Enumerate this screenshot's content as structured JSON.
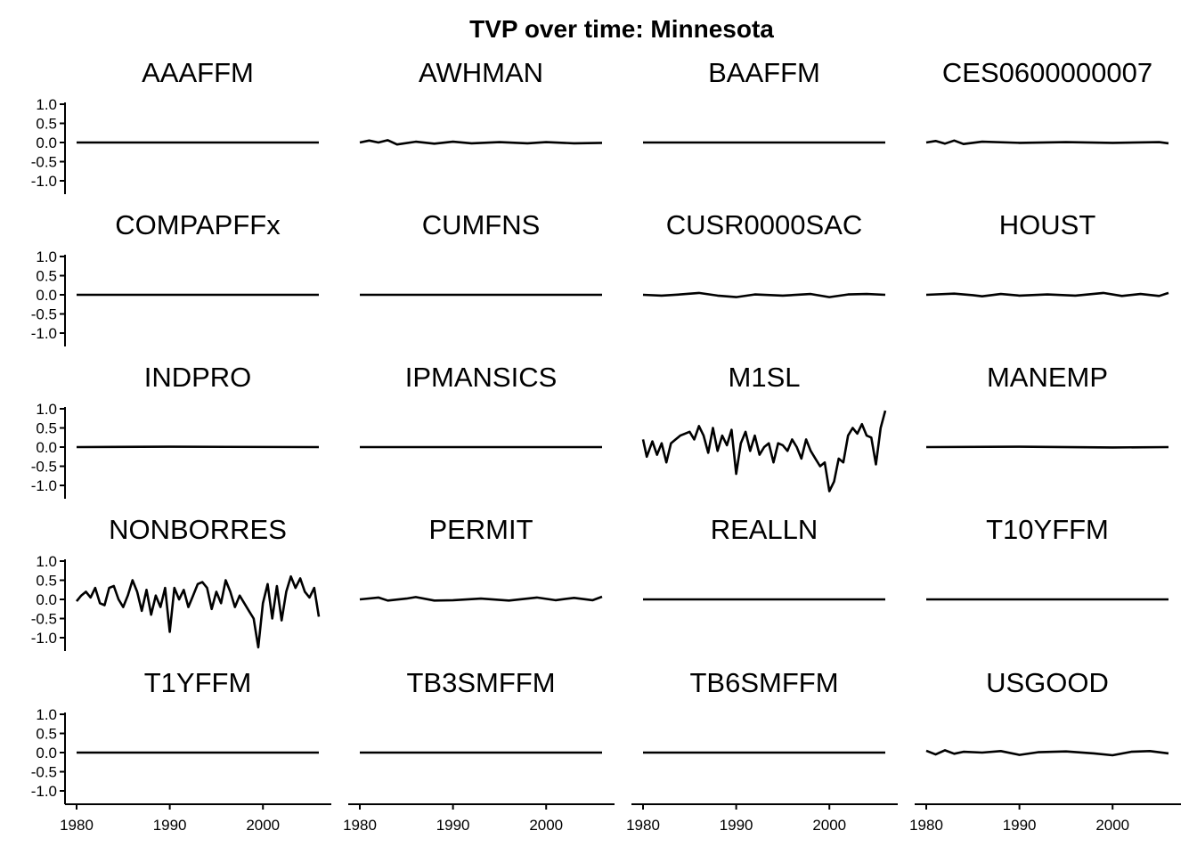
{
  "chart_data": {
    "type": "line",
    "title": "TVP over time: Minnesota",
    "xlabel": "",
    "ylabel": "",
    "xlim": [
      1980,
      2006
    ],
    "ylim": [
      -1.35,
      1.05
    ],
    "y_ticks": [
      "1.0",
      "0.5",
      "0.0",
      "-0.5",
      "-1.0"
    ],
    "y_tick_values": [
      1.0,
      0.5,
      0.0,
      -0.5,
      -1.0
    ],
    "x_ticks": [
      "1980",
      "1990",
      "2000"
    ],
    "x_tick_values": [
      1980,
      1990,
      2000
    ],
    "grid": false,
    "layout": "facet-grid 5 rows x 4 columns",
    "panels": [
      {
        "name": "AAAFFM",
        "x": [
          1980,
          2006
        ],
        "values": [
          0,
          0
        ]
      },
      {
        "name": "AWHMAN",
        "x": [
          1980,
          1981,
          1982,
          1983,
          1984,
          1986,
          1988,
          1990,
          1992,
          1995,
          1998,
          2000,
          2003,
          2006
        ],
        "values": [
          0.0,
          0.05,
          0.0,
          0.06,
          -0.05,
          0.02,
          -0.03,
          0.02,
          -0.02,
          0.01,
          -0.02,
          0.01,
          -0.02,
          -0.01
        ]
      },
      {
        "name": "BAAFFM",
        "x": [
          1980,
          2006
        ],
        "values": [
          0,
          0
        ]
      },
      {
        "name": "CES0600000007",
        "x": [
          1980,
          1981,
          1982,
          1983,
          1984,
          1986,
          1990,
          1995,
          2000,
          2005,
          2006
        ],
        "values": [
          0.0,
          0.04,
          -0.03,
          0.05,
          -0.04,
          0.02,
          -0.01,
          0.01,
          -0.01,
          0.01,
          -0.02
        ]
      },
      {
        "name": "COMPAPFFx",
        "x": [
          1980,
          2006
        ],
        "values": [
          0,
          0
        ]
      },
      {
        "name": "CUMFNS",
        "x": [
          1980,
          2006
        ],
        "values": [
          0,
          0
        ]
      },
      {
        "name": "CUSR0000SAC",
        "x": [
          1980,
          1982,
          1984,
          1986,
          1988,
          1990,
          1992,
          1995,
          1998,
          2000,
          2002,
          2004,
          2006
        ],
        "values": [
          0.0,
          -0.02,
          0.01,
          0.05,
          -0.02,
          -0.06,
          0.01,
          -0.02,
          0.02,
          -0.06,
          0.01,
          0.02,
          0.0
        ]
      },
      {
        "name": "HOUST",
        "x": [
          1980,
          1983,
          1985,
          1986,
          1988,
          1990,
          1993,
          1996,
          1999,
          2001,
          2003,
          2005,
          2006
        ],
        "values": [
          0.0,
          0.03,
          -0.01,
          -0.04,
          0.02,
          -0.02,
          0.01,
          -0.02,
          0.05,
          -0.03,
          0.02,
          -0.03,
          0.05
        ]
      },
      {
        "name": "INDPRO",
        "x": [
          1980,
          1990,
          2006
        ],
        "values": [
          0.0,
          0.01,
          0.0
        ]
      },
      {
        "name": "IPMANSICS",
        "x": [
          1980,
          2006
        ],
        "values": [
          0,
          0
        ]
      },
      {
        "name": "M1SL",
        "x": [
          1980,
          1980.4,
          1981,
          1981.5,
          1982,
          1982.5,
          1983,
          1983.5,
          1984,
          1984.5,
          1985,
          1985.5,
          1986,
          1986.5,
          1987,
          1987.5,
          1988,
          1988.5,
          1989,
          1989.5,
          1990,
          1990.5,
          1991,
          1991.5,
          1992,
          1992.5,
          1993,
          1993.5,
          1994,
          1994.5,
          1995,
          1995.5,
          1996,
          1996.5,
          1997,
          1997.5,
          1998,
          1998.5,
          1999,
          1999.5,
          2000,
          2000.5,
          2001,
          2001.5,
          2002,
          2002.5,
          2003,
          2003.5,
          2004,
          2004.5,
          2005,
          2005.5,
          2006
        ],
        "values": [
          0.2,
          -0.25,
          0.15,
          -0.2,
          0.1,
          -0.4,
          0.1,
          0.2,
          0.3,
          0.35,
          0.4,
          0.2,
          0.55,
          0.3,
          -0.15,
          0.5,
          -0.1,
          0.3,
          0.05,
          0.45,
          -0.7,
          0.1,
          0.4,
          -0.1,
          0.3,
          -0.2,
          0.0,
          0.1,
          -0.4,
          0.1,
          0.05,
          -0.1,
          0.2,
          0.0,
          -0.3,
          0.2,
          -0.1,
          -0.3,
          -0.5,
          -0.4,
          -1.15,
          -0.9,
          -0.3,
          -0.4,
          0.3,
          0.5,
          0.35,
          0.6,
          0.3,
          0.25,
          -0.45,
          0.5,
          0.95
        ]
      },
      {
        "name": "MANEMP",
        "x": [
          1980,
          1990,
          2000,
          2006
        ],
        "values": [
          0.0,
          0.01,
          -0.01,
          0.0
        ]
      },
      {
        "name": "NONBORRES",
        "x": [
          1980,
          1980.5,
          1981,
          1981.5,
          1982,
          1982.5,
          1983,
          1983.5,
          1984,
          1984.5,
          1985,
          1985.5,
          1986,
          1986.5,
          1987,
          1987.5,
          1988,
          1988.5,
          1989,
          1989.5,
          1990,
          1990.5,
          1991,
          1991.5,
          1992,
          1992.5,
          1993,
          1993.5,
          1994,
          1994.5,
          1995,
          1995.5,
          1996,
          1996.5,
          1997,
          1997.5,
          1998,
          1998.5,
          1999,
          1999.5,
          2000,
          2000.5,
          2001,
          2001.5,
          2002,
          2002.5,
          2003,
          2003.5,
          2004,
          2004.5,
          2005,
          2005.5,
          2006
        ],
        "values": [
          -0.05,
          0.1,
          0.2,
          0.05,
          0.3,
          -0.1,
          -0.15,
          0.3,
          0.35,
          0.0,
          -0.2,
          0.1,
          0.5,
          0.2,
          -0.3,
          0.25,
          -0.4,
          0.1,
          -0.2,
          0.3,
          -0.85,
          0.3,
          0.0,
          0.25,
          -0.2,
          0.1,
          0.4,
          0.45,
          0.3,
          -0.25,
          0.2,
          -0.1,
          0.5,
          0.2,
          -0.2,
          0.1,
          -0.1,
          -0.3,
          -0.5,
          -1.25,
          -0.1,
          0.4,
          -0.5,
          0.35,
          -0.55,
          0.2,
          0.6,
          0.3,
          0.55,
          0.2,
          0.05,
          0.3,
          -0.45
        ]
      },
      {
        "name": "PERMIT",
        "x": [
          1980,
          1982,
          1983,
          1985,
          1986,
          1988,
          1990,
          1993,
          1996,
          1999,
          2001,
          2003,
          2005,
          2006
        ],
        "values": [
          0.0,
          0.05,
          -0.03,
          0.02,
          0.06,
          -0.03,
          -0.02,
          0.02,
          -0.03,
          0.05,
          -0.02,
          0.04,
          -0.02,
          0.07
        ]
      },
      {
        "name": "REALLN",
        "x": [
          1980,
          2006
        ],
        "values": [
          0,
          0
        ]
      },
      {
        "name": "T10YFFM",
        "x": [
          1980,
          2006
        ],
        "values": [
          0,
          0
        ]
      },
      {
        "name": "T1YFFM",
        "x": [
          1980,
          2006
        ],
        "values": [
          0,
          0
        ]
      },
      {
        "name": "TB3SMFFM",
        "x": [
          1980,
          2006
        ],
        "values": [
          0,
          0
        ]
      },
      {
        "name": "TB6SMFFM",
        "x": [
          1980,
          2006
        ],
        "values": [
          0,
          0
        ]
      },
      {
        "name": "USGOOD",
        "x": [
          1980,
          1981,
          1982,
          1983,
          1984,
          1986,
          1988,
          1990,
          1992,
          1995,
          1998,
          2000,
          2002,
          2004,
          2006
        ],
        "values": [
          0.05,
          -0.05,
          0.06,
          -0.03,
          0.02,
          0.0,
          0.04,
          -0.06,
          0.01,
          0.03,
          -0.02,
          -0.07,
          0.02,
          0.04,
          -0.02
        ]
      }
    ]
  }
}
